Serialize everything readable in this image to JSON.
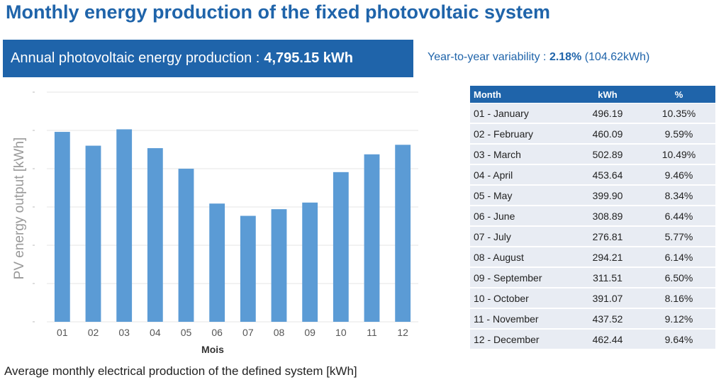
{
  "header": {
    "title": "Monthly energy production of the fixed photovoltaic system",
    "annual_label": "Annual photovoltaic energy production :",
    "annual_value": "4,795.15 kWh",
    "variability_label": "Year-to-year variability :",
    "variability_percent": "2.18%",
    "variability_abs": "(104.62kWh)"
  },
  "caption": "Average monthly electrical production of the defined system [kWh]",
  "table": {
    "headers": [
      "Month",
      "kWh",
      "%"
    ],
    "rows": [
      [
        "01 - January",
        "496.19",
        "10.35%"
      ],
      [
        "02 - February",
        "460.09",
        "9.59%"
      ],
      [
        "03 - March",
        "502.89",
        "10.49%"
      ],
      [
        "04 - April",
        "453.64",
        "9.46%"
      ],
      [
        "05 - May",
        "399.90",
        "8.34%"
      ],
      [
        "06 - June",
        "308.89",
        "6.44%"
      ],
      [
        "07 - July",
        "276.81",
        "5.77%"
      ],
      [
        "08 - August",
        "294.21",
        "6.14%"
      ],
      [
        "09 - September",
        "311.51",
        "6.50%"
      ],
      [
        "10 - October",
        "391.07",
        "8.16%"
      ],
      [
        "11 - November",
        "437.52",
        "9.12%"
      ],
      [
        "12 - December",
        "462.44",
        "9.64%"
      ]
    ]
  },
  "chart_data": {
    "type": "bar",
    "categories": [
      "01",
      "02",
      "03",
      "04",
      "05",
      "06",
      "07",
      "08",
      "09",
      "10",
      "11",
      "12"
    ],
    "values": [
      496.19,
      460.09,
      502.89,
      453.64,
      399.9,
      308.89,
      276.81,
      294.21,
      311.51,
      391.07,
      437.52,
      462.44
    ],
    "xlabel": "Mois",
    "ylabel": "PV energy output [kWh]",
    "ylim": [
      0,
      600
    ],
    "grid": true,
    "bar_color": "#5b9bd5"
  },
  "colors": {
    "accent": "#1f64aa",
    "bar": "#5b9bd5",
    "table_row": "#e8ecf3"
  }
}
